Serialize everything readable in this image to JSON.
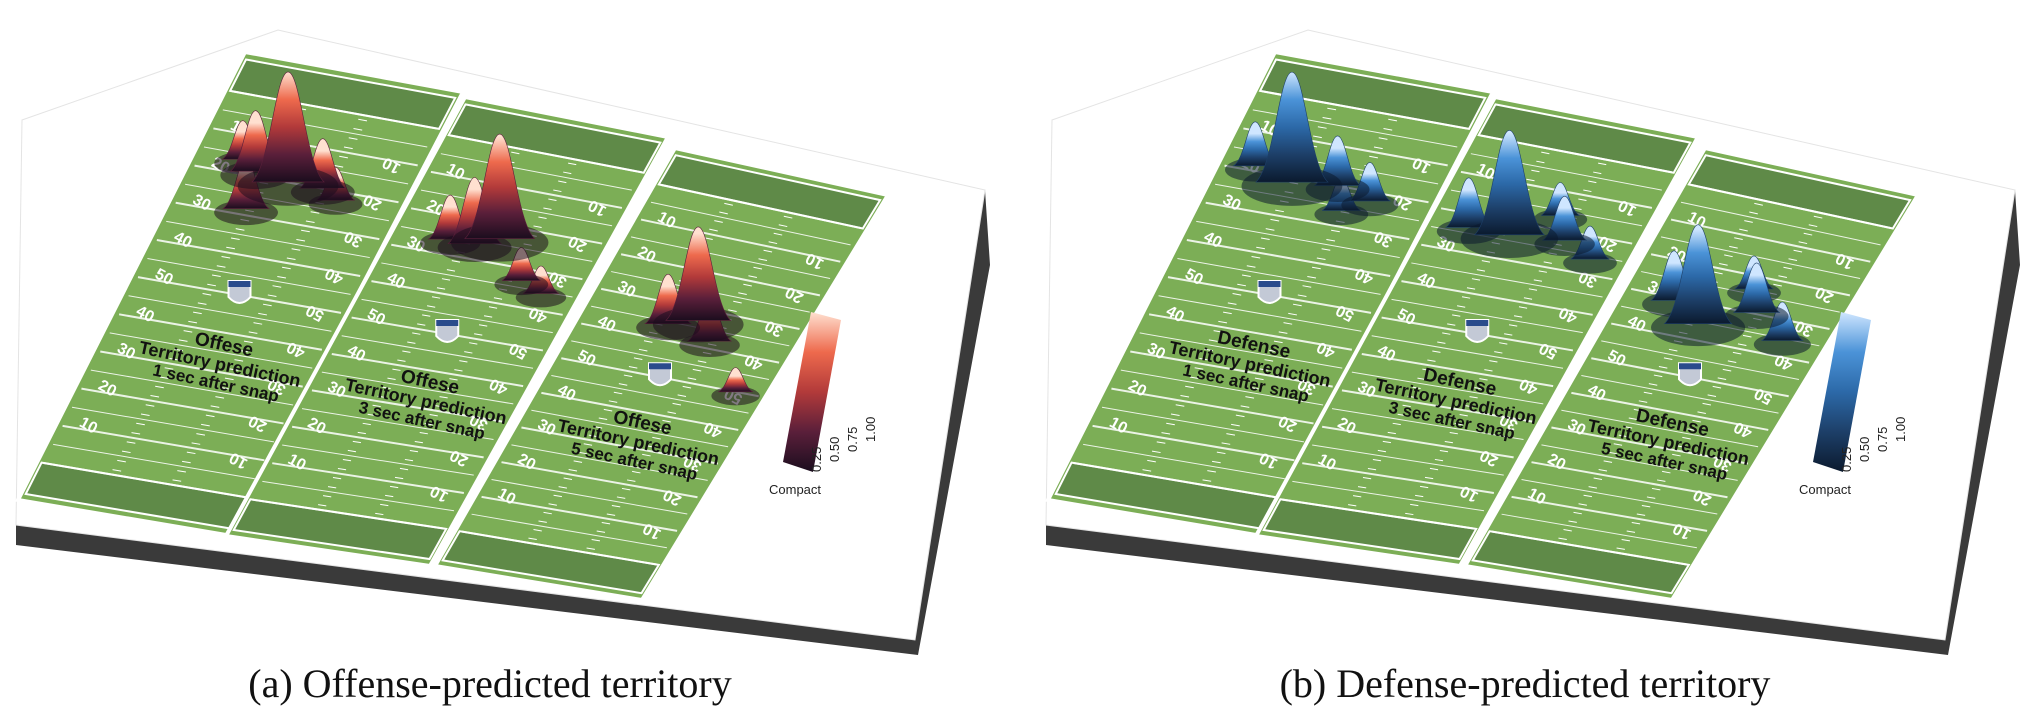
{
  "panels": [
    {
      "caption": "(a)  Offense-predicted territory",
      "colorbar": {
        "ticks": [
          "0.25",
          "0.50",
          "0.75",
          "1.00"
        ],
        "label": "Compact",
        "scheme": [
          "#1b0d1e",
          "#5a1f3a",
          "#b23a3a",
          "#ee6a4d",
          "#ffe0d0"
        ]
      },
      "fields": [
        {
          "title": "Offese",
          "subtitle": "Territory prediction",
          "time": "1 sec after snap"
        },
        {
          "title": "Offese",
          "subtitle": "Territory prediction",
          "time": "3 sec after snap"
        },
        {
          "title": "Offese",
          "subtitle": "Territory prediction",
          "time": "5 sec after snap"
        }
      ]
    },
    {
      "caption": "(b)  Defense-predicted territory",
      "colorbar": {
        "ticks": [
          "0.25",
          "0.50",
          "0.75",
          "1.00"
        ],
        "label": "Compact",
        "scheme": [
          "#0b1a2e",
          "#1d3f68",
          "#2c69a8",
          "#4b93d8",
          "#cfe6ff"
        ]
      },
      "fields": [
        {
          "title": "Defense",
          "subtitle": "Territory prediction",
          "time": "1 sec after snap"
        },
        {
          "title": "Defense",
          "subtitle": "Territory prediction",
          "time": "3 sec after snap"
        },
        {
          "title": "Defense",
          "subtitle": "Territory prediction",
          "time": "5 sec after snap"
        }
      ]
    }
  ],
  "yard_numbers": [
    "10",
    "20",
    "30",
    "40",
    "50",
    "40",
    "30",
    "20",
    "10"
  ]
}
